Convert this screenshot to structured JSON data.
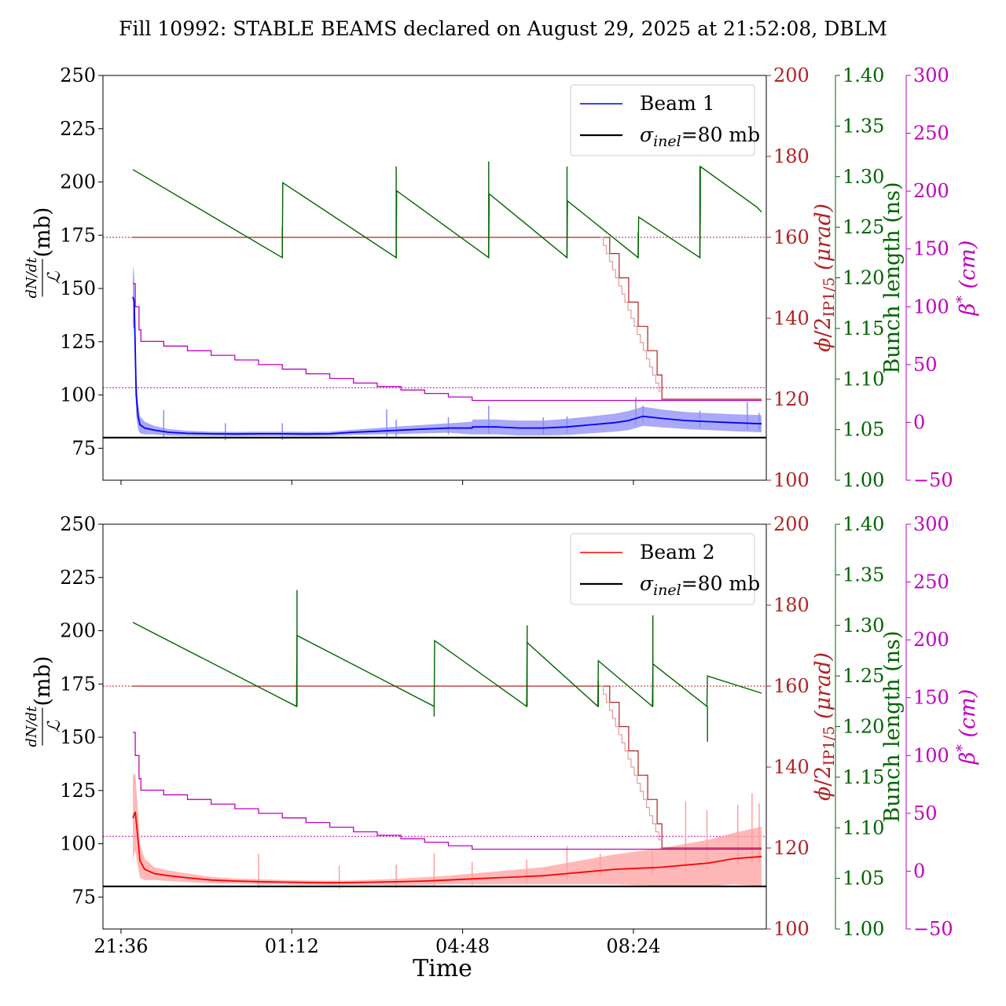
{
  "title": "Fill 10992: STABLE BEAMS declared on August 29, 2025 at 21:52:08, DBLM",
  "colors": {
    "beam1": "#0000ff",
    "beam1_band": "#8c8cf5",
    "beam2": "#ff0000",
    "beam2_band": "#ffa0a0",
    "crossing": "#b22222",
    "crossing_light": "#e39c9c",
    "bunch": "#006400",
    "betastar": "#c000c0",
    "sigma": "#000000"
  },
  "chart_data": [
    {
      "type": "line",
      "name": "Beam 1 panel",
      "xlabel": "",
      "x_ticks": [
        "21:36",
        "01:12",
        "04:48",
        "08:24"
      ],
      "x_tick_hours": [
        21.6,
        25.2,
        28.8,
        32.4
      ],
      "xlim_hours": [
        21.22,
        35.2
      ],
      "y_left": {
        "label": "dN/dt / ℒ (mb)",
        "lim": [
          60,
          250
        ],
        "ticks": [
          75,
          100,
          125,
          150,
          175,
          200,
          225,
          250
        ]
      },
      "y_crossing": {
        "label": "ϕ/2IP1/5 (μrad)",
        "lim": [
          100,
          200
        ],
        "ticks": [
          100,
          120,
          140,
          160,
          180,
          200
        ]
      },
      "y_bunch": {
        "label": "Bunch length (ns)",
        "lim": [
          1.0,
          1.4
        ],
        "ticks": [
          "1.00",
          "1.05",
          "1.10",
          "1.15",
          "1.20",
          "1.25",
          "1.30",
          "1.35",
          "1.40"
        ]
      },
      "y_betastar": {
        "label": "β* (cm)",
        "lim": [
          -50,
          300
        ],
        "ticks": [
          "−50",
          "0",
          "50",
          "100",
          "150",
          "200",
          "250",
          "300"
        ]
      },
      "legend": {
        "placement": "top-right",
        "entries": [
          "Beam 1",
          "σinel=80 mb"
        ]
      },
      "sigma_inel_mb": 80,
      "series": [
        {
          "name": "Beam 1",
          "axis": "left",
          "x": [
            21.85,
            21.88,
            21.92,
            21.96,
            22.0,
            22.1,
            22.3,
            22.6,
            23.0,
            23.5,
            24.0,
            24.5,
            25.0,
            25.5,
            26.0,
            26.5,
            27.0,
            27.5,
            28.0,
            28.5,
            29.0,
            29.01,
            29.5,
            30.0,
            30.5,
            31.0,
            31.5,
            32.0,
            32.3,
            32.6,
            33.0,
            33.5,
            34.0,
            34.5,
            35.1
          ],
          "y": [
            146,
            144,
            100,
            90,
            86,
            84.5,
            83.5,
            82.5,
            82,
            81.8,
            81.7,
            81.8,
            81.8,
            81.7,
            81.8,
            82.5,
            83,
            83.5,
            84,
            84.5,
            84.5,
            85,
            85,
            84.5,
            84.5,
            85,
            86,
            87,
            88,
            90,
            89,
            88,
            87.5,
            87,
            86.5
          ],
          "band_spread": [
            15,
            12,
            10,
            6,
            4,
            3,
            2,
            1.5,
            1.2,
            1,
            1,
            1,
            1,
            1,
            1,
            1.2,
            1.5,
            1.8,
            2,
            2.2,
            3,
            3.5,
            3.5,
            3.5,
            3.5,
            3.8,
            4,
            4.2,
            4.5,
            4.5,
            4.2,
            4,
            4,
            4,
            4
          ]
        },
        {
          "name": "crossing angle",
          "axis": "crossing",
          "x": [
            21.85,
            31.7,
            31.9,
            32.1,
            32.3,
            32.5,
            32.7,
            32.9,
            33.0,
            35.1
          ],
          "y": [
            160,
            160,
            156,
            150,
            144,
            138,
            132,
            126,
            120,
            120
          ]
        },
        {
          "name": "bunch length",
          "axis": "bunch",
          "x": [
            21.85,
            25.0,
            25.01,
            27.4,
            27.41,
            29.35,
            29.36,
            31.0,
            31.01,
            32.5,
            32.51,
            33.8,
            33.81
          ],
          "y": [
            1.307,
            1.22,
            1.294,
            1.22,
            1.286,
            1.22,
            1.283,
            1.22,
            1.276,
            1.22,
            1.26,
            1.22,
            1.27
          ],
          "x2": [
            33.81,
            35.0,
            35.1
          ],
          "y2": [
            1.31,
            1.27,
            1.265
          ]
        },
        {
          "name": "beta star",
          "axis": "betastar",
          "x": [
            21.85,
            21.9,
            21.98,
            22.02,
            22.5,
            23.0,
            23.5,
            24.0,
            24.5,
            25.0,
            25.5,
            26.0,
            26.5,
            27.0,
            27.5,
            28.0,
            28.5,
            29.0,
            35.1
          ],
          "y": [
            120,
            100,
            80,
            70,
            66,
            62,
            58,
            54,
            50,
            46,
            42,
            38,
            34,
            31,
            28,
            25,
            22,
            19,
            19
          ],
          "reference": 30
        }
      ]
    },
    {
      "type": "line",
      "name": "Beam 2 panel",
      "xlabel": "Time",
      "x_ticks": [
        "21:36",
        "01:12",
        "04:48",
        "08:24"
      ],
      "x_tick_hours": [
        21.6,
        25.2,
        28.8,
        32.4
      ],
      "xlim_hours": [
        21.22,
        35.2
      ],
      "y_left": {
        "label": "dN/dt / ℒ (mb)",
        "lim": [
          60,
          250
        ],
        "ticks": [
          75,
          100,
          125,
          150,
          175,
          200,
          225,
          250
        ]
      },
      "y_crossing": {
        "label": "ϕ/2IP1/5 (μrad)",
        "lim": [
          100,
          200
        ],
        "ticks": [
          100,
          120,
          140,
          160,
          180,
          200
        ]
      },
      "y_bunch": {
        "label": "Bunch length (ns)",
        "lim": [
          1.0,
          1.4
        ],
        "ticks": [
          "1.00",
          "1.05",
          "1.10",
          "1.15",
          "1.20",
          "1.25",
          "1.30",
          "1.35",
          "1.40"
        ]
      },
      "y_betastar": {
        "label": "β* (cm)",
        "lim": [
          -50,
          300
        ],
        "ticks": [
          "−50",
          "0",
          "50",
          "100",
          "150",
          "200",
          "250",
          "300"
        ]
      },
      "legend": {
        "placement": "top-right",
        "entries": [
          "Beam 2",
          "σinel=80 mb"
        ]
      },
      "sigma_inel_mb": 80,
      "series": [
        {
          "name": "Beam 2",
          "axis": "left",
          "x": [
            21.85,
            21.9,
            21.95,
            22.0,
            22.1,
            22.3,
            22.6,
            23.0,
            23.5,
            24.0,
            24.5,
            25.0,
            25.5,
            26.0,
            26.5,
            27.0,
            27.5,
            28.0,
            28.5,
            29.0,
            29.5,
            30.0,
            30.5,
            31.0,
            31.5,
            32.0,
            32.5,
            33.0,
            33.5,
            34.0,
            34.5,
            35.1
          ],
          "y": [
            112,
            115,
            104,
            92,
            88,
            86,
            85,
            84,
            83,
            82.5,
            82.2,
            82,
            81.8,
            81.7,
            81.8,
            82,
            82.2,
            82.5,
            83,
            83.5,
            84,
            84.5,
            85,
            86,
            87,
            88,
            88.5,
            89,
            90,
            91,
            93,
            94
          ],
          "band_spread": [
            20,
            18,
            14,
            8,
            5,
            3,
            2.5,
            2,
            1.5,
            1.2,
            1.2,
            1,
            1,
            1,
            1,
            1.2,
            1.5,
            1.8,
            2,
            2.5,
            3,
            3.5,
            4,
            5,
            6,
            7,
            8,
            9,
            10,
            11,
            12,
            14
          ]
        },
        {
          "name": "crossing angle",
          "axis": "crossing",
          "x": [
            21.85,
            31.7,
            31.9,
            32.1,
            32.3,
            32.5,
            32.7,
            32.9,
            33.0,
            35.1
          ],
          "y": [
            160,
            160,
            156,
            150,
            144,
            138,
            132,
            126,
            120,
            120
          ]
        },
        {
          "name": "bunch length",
          "axis": "bunch",
          "x": [
            21.85,
            25.3,
            25.31,
            28.2,
            28.21,
            30.15,
            30.16,
            31.65,
            31.66,
            32.8,
            32.81,
            33.95,
            33.96
          ],
          "y": [
            1.303,
            1.22,
            1.29,
            1.22,
            1.285,
            1.22,
            1.283,
            1.22,
            1.265,
            1.22,
            1.262,
            1.22,
            1.25
          ],
          "x2": [
            33.96,
            35.1
          ],
          "y2": [
            1.25,
            1.233
          ]
        },
        {
          "name": "beta star",
          "axis": "betastar",
          "x": [
            21.85,
            21.9,
            21.98,
            22.02,
            22.5,
            23.0,
            23.5,
            24.0,
            24.5,
            25.0,
            25.5,
            26.0,
            26.5,
            27.0,
            27.5,
            28.0,
            28.5,
            29.0,
            35.1
          ],
          "y": [
            120,
            100,
            80,
            70,
            66,
            62,
            58,
            54,
            50,
            46,
            42,
            38,
            34,
            31,
            28,
            25,
            22,
            19,
            19
          ],
          "reference": 30
        }
      ]
    }
  ]
}
